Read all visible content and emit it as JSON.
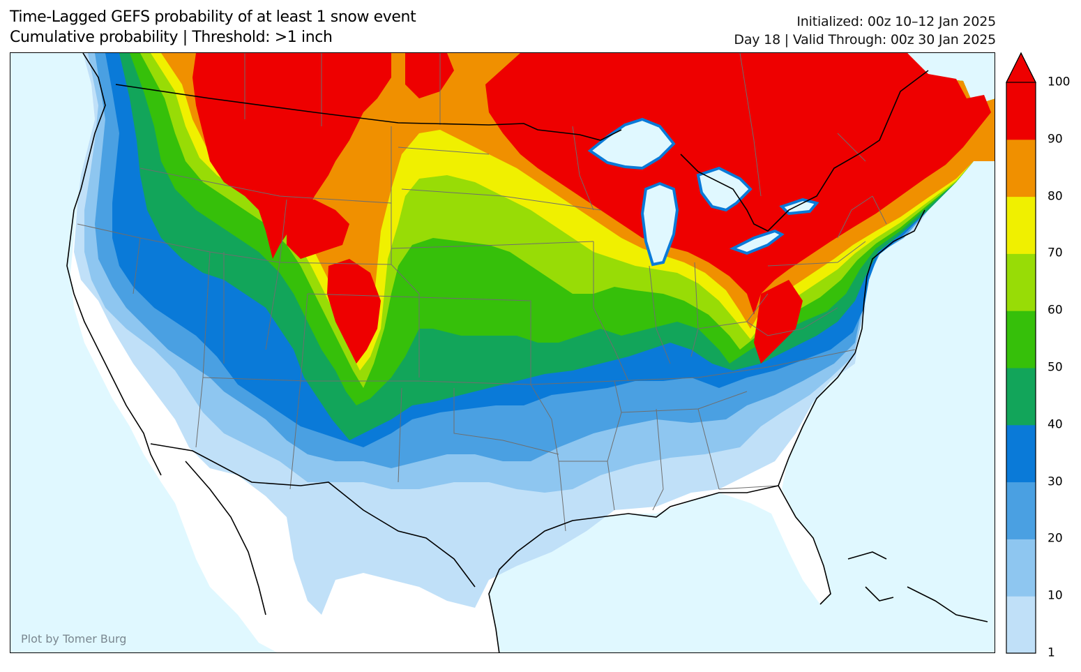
{
  "title": {
    "line1": "Time-Lagged GEFS probability of at least 1 snow event",
    "line2": "Cumulative probability | Threshold: >1 inch"
  },
  "meta": {
    "initialized": "Initialized: 00z 10–12 Jan 2025",
    "valid": "Day 18 | Valid Through: 00z 30 Jan 2025"
  },
  "credit": "Plot by Tomer Burg",
  "colorbar": {
    "levels": [
      {
        "from": 1,
        "to": 10,
        "color": "#c0e0f8"
      },
      {
        "from": 10,
        "to": 20,
        "color": "#8ec6f0"
      },
      {
        "from": 20,
        "to": 30,
        "color": "#4aa0e2"
      },
      {
        "from": 30,
        "to": 40,
        "color": "#0a7ad8"
      },
      {
        "from": 40,
        "to": 50,
        "color": "#12a55a"
      },
      {
        "from": 50,
        "to": 60,
        "color": "#36c00a"
      },
      {
        "from": 60,
        "to": 70,
        "color": "#98dc06"
      },
      {
        "from": 70,
        "to": 80,
        "color": "#f0f000"
      },
      {
        "from": 80,
        "to": 90,
        "color": "#f09000"
      },
      {
        "from": 90,
        "to": 100,
        "color": "#ee0000"
      }
    ],
    "tick_labels": [
      "1",
      "10",
      "20",
      "30",
      "40",
      "50",
      "60",
      "70",
      "80",
      "90",
      "100"
    ],
    "extend": "max"
  },
  "colors": {
    "ocean": "#e0f8ff",
    "land_below_threshold": "#ffffff",
    "coastline": "#000000",
    "state_border": "#6e6e6e"
  }
}
